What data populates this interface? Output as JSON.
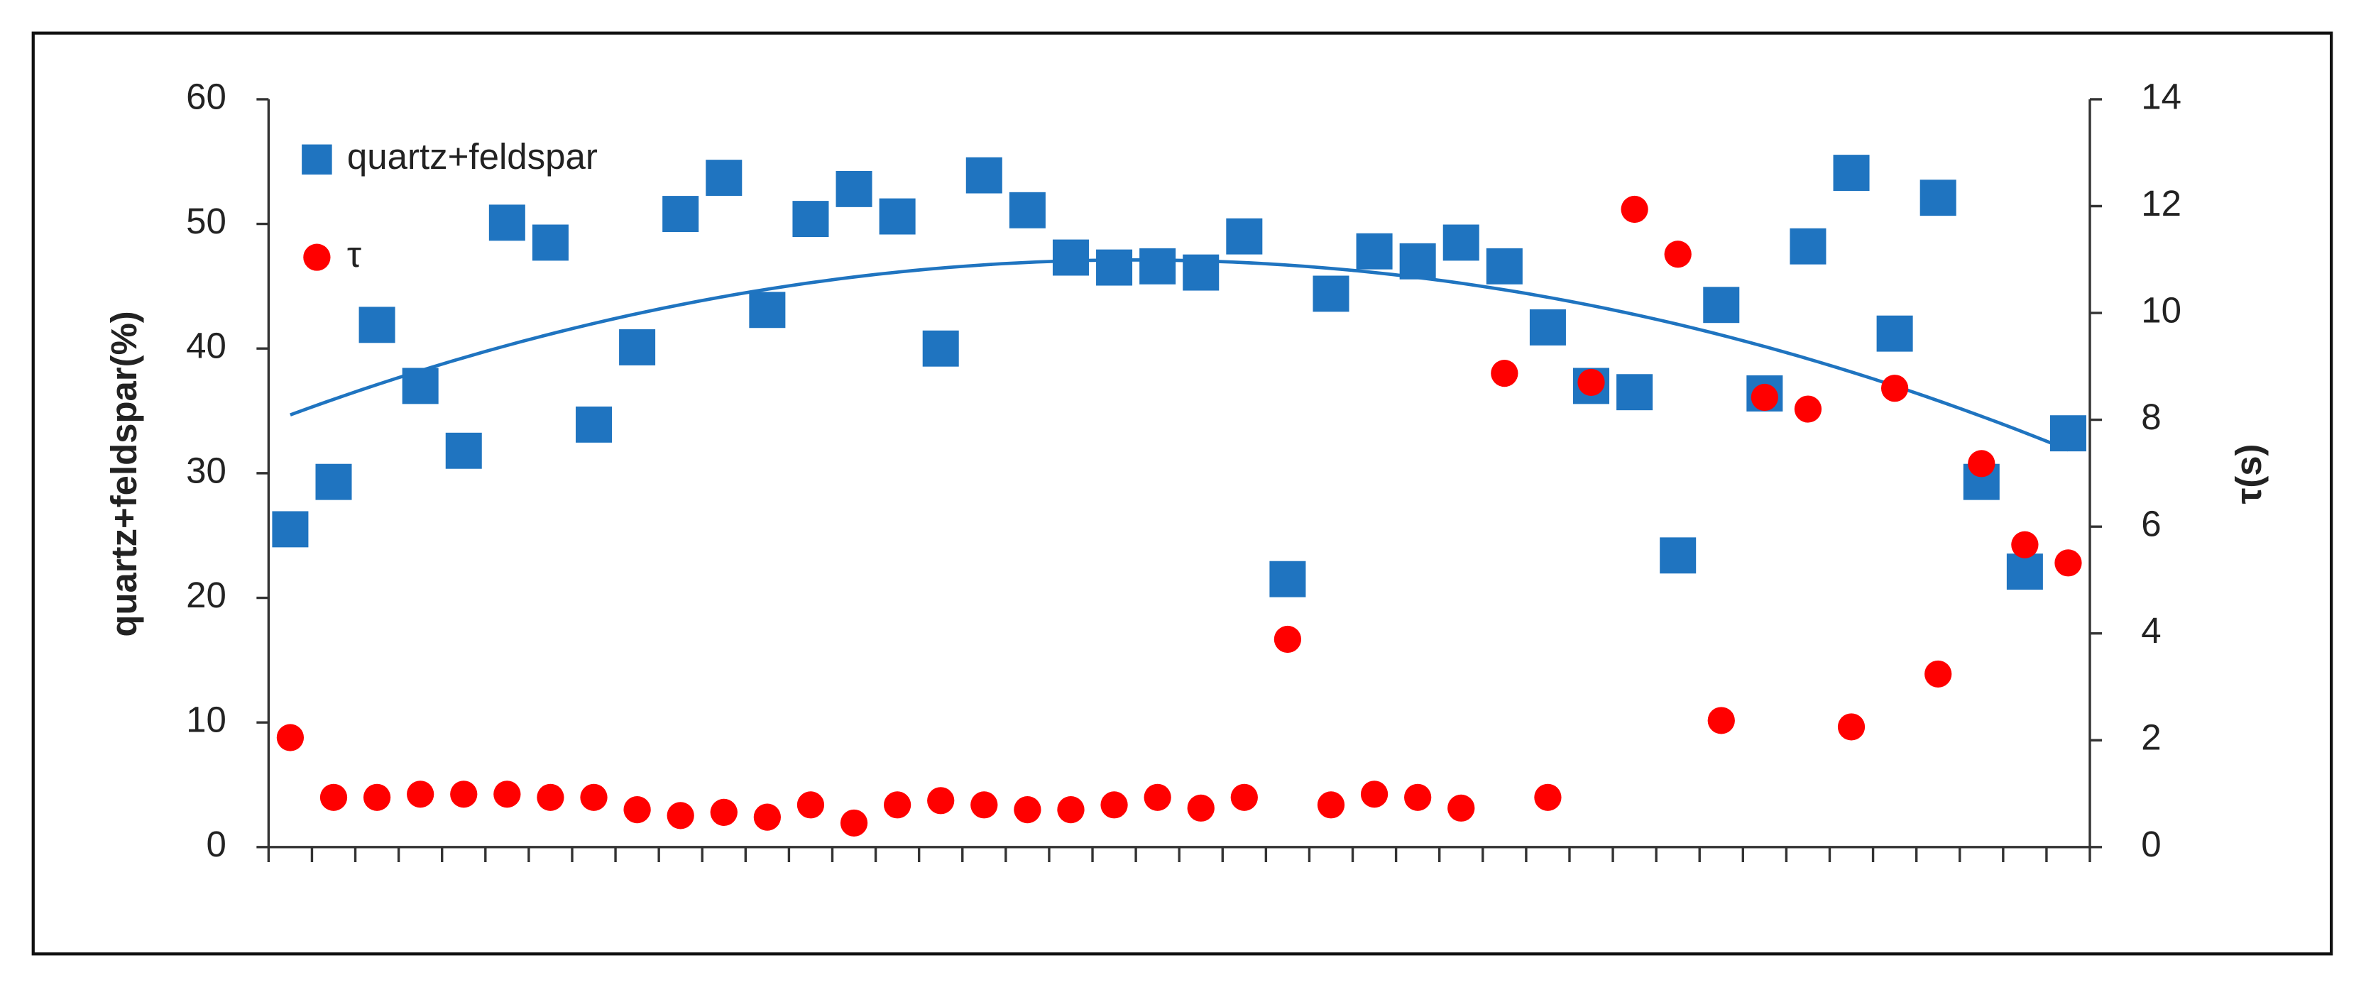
{
  "chart_data": {
    "type": "scatter",
    "categories": [
      null,
      null,
      null,
      null,
      null,
      null,
      null,
      null,
      null,
      null,
      null,
      null,
      null,
      null,
      null,
      null,
      null,
      null,
      null,
      null,
      null,
      null,
      null,
      null,
      null,
      null,
      null,
      null,
      null,
      null,
      null,
      null,
      null,
      null,
      null,
      null,
      null,
      null,
      null,
      null,
      null,
      null
    ],
    "series": [
      {
        "name": "quartz+feldspar",
        "color": "#1f74c0",
        "marker": "square",
        "trendline": "poly2",
        "values": [
          25.5,
          29.3,
          41.9,
          37,
          31.8,
          50.1,
          48.5,
          33.9,
          40.1,
          50.8,
          53.7,
          43.1,
          50.4,
          52.8,
          50.6,
          40,
          53.9,
          51.1,
          47.3,
          46.5,
          46.6,
          46.1,
          49,
          21.5,
          44.4,
          47.8,
          47,
          48.5,
          46.6,
          41.7,
          37,
          36.5,
          23.4,
          43.5,
          36.4,
          48.2,
          54.1,
          41.2,
          52.1,
          29.3,
          22.1,
          33.2
        ]
      },
      {
        "name": "τ",
        "color": "#ff0000",
        "marker": "circle",
        "axis": "y2",
        "values": [
          2.05,
          0.93,
          0.93,
          0.99,
          0.99,
          0.99,
          0.93,
          0.93,
          0.7,
          0.59,
          0.65,
          0.56,
          0.79,
          0.45,
          0.79,
          0.87,
          0.79,
          0.7,
          0.7,
          0.79,
          0.93,
          0.73,
          0.93,
          3.89,
          0.79,
          0.99,
          0.93,
          0.73,
          8.87,
          0.93,
          8.7,
          11.94,
          11.1,
          2.37,
          8.42,
          8.2,
          2.25,
          8.59,
          3.24,
          7.18,
          5.66,
          5.32
        ]
      }
    ],
    "ylabel": "quartz+feldspar(%)",
    "y2label": "τ(s)",
    "ylim": [
      0,
      60
    ],
    "yticks": [
      0,
      10,
      20,
      30,
      40,
      50,
      60
    ],
    "y2lim": [
      0,
      14
    ],
    "y2ticks": [
      0,
      2,
      4,
      6,
      8,
      10,
      12,
      14
    ],
    "legend": "upper left"
  }
}
